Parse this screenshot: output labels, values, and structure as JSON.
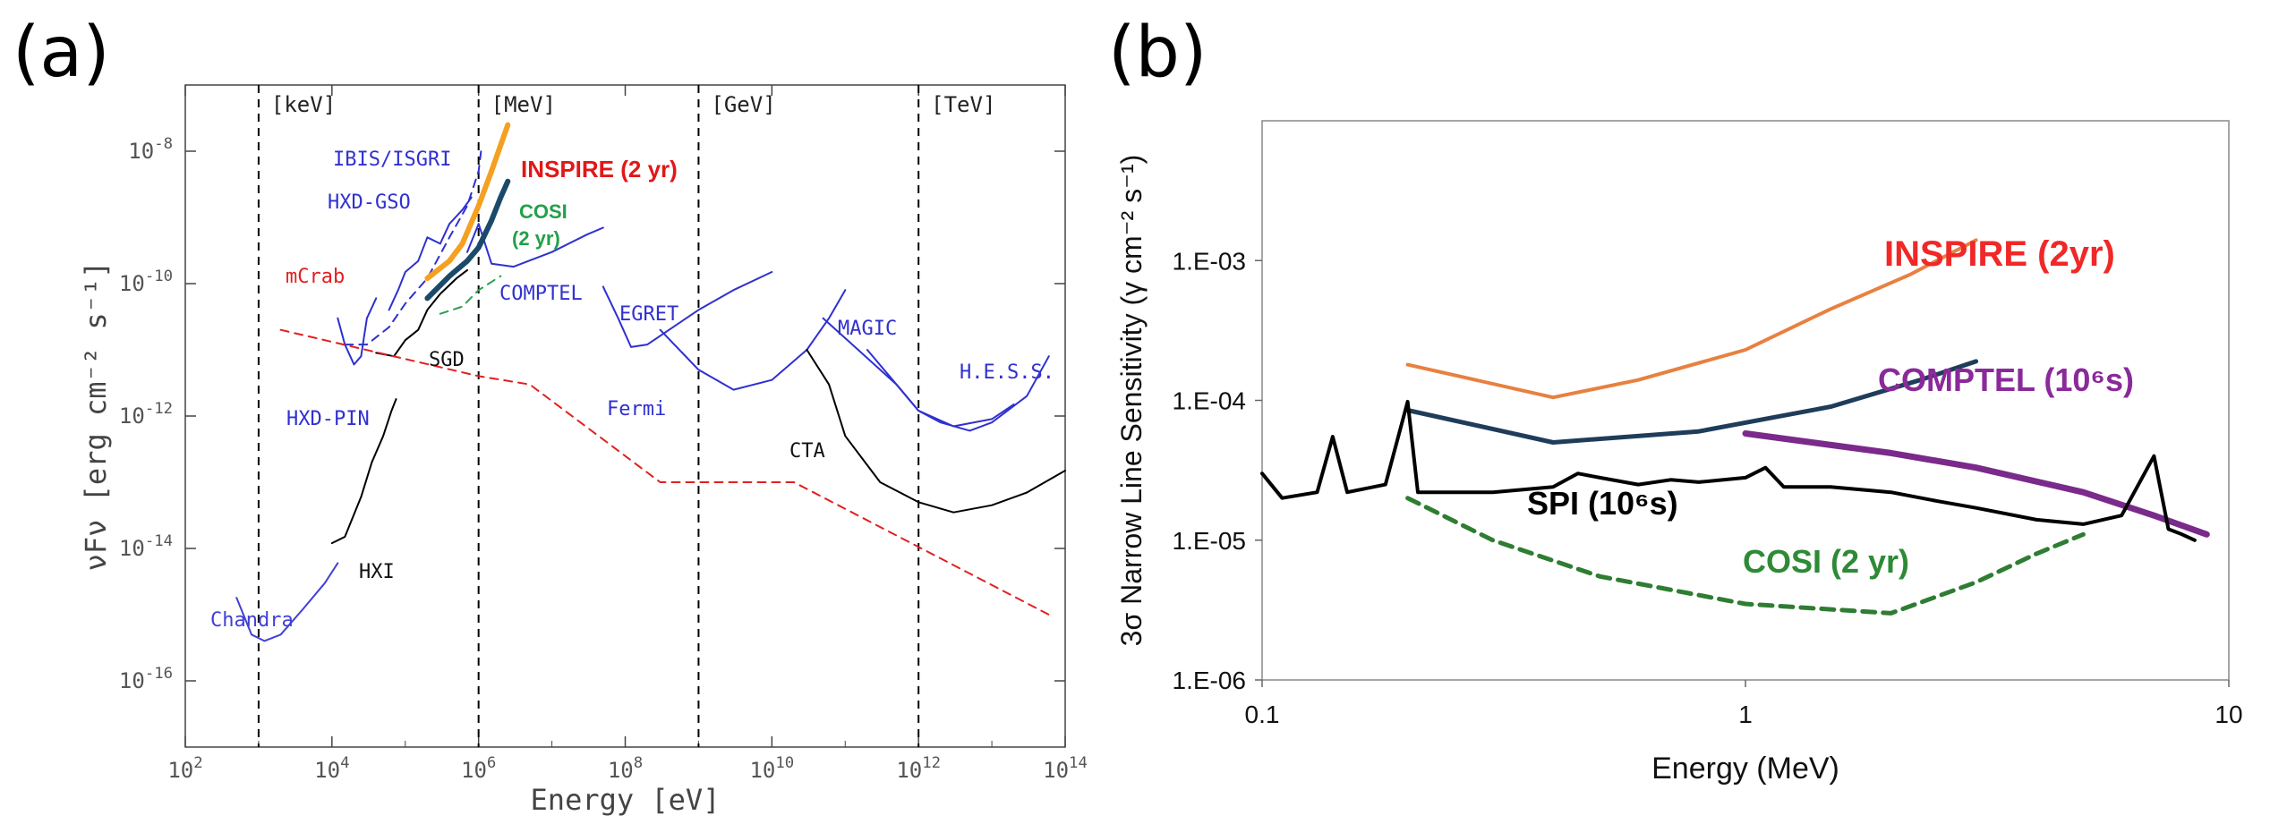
{
  "figure": {
    "panel_a_label": "(a)",
    "panel_b_label": "(b)"
  },
  "chart_data": [
    {
      "panel": "(a)",
      "type": "line",
      "xlabel": "Energy [eV]",
      "ylabel": "νFν [erg cm⁻² s⁻¹]",
      "xscale": "log",
      "yscale": "log",
      "xlim": [
        100,
        100000000000000
      ],
      "ylim": [
        1e-17,
        1e-07
      ],
      "x_ticks": [
        100,
        10000,
        1000000,
        100000000,
        10000000000,
        1000000000000,
        100000000000000
      ],
      "x_tick_labels": [
        "10^2",
        "10^4",
        "10^6",
        "10^8",
        "10^10",
        "10^12",
        "10^14"
      ],
      "y_ticks": [
        1e-16,
        1e-14,
        1e-12,
        1e-10,
        1e-08
      ],
      "y_tick_labels": [
        "10^-16",
        "10^-14",
        "10^-12",
        "10^-10",
        "10^-8"
      ],
      "band_lines": [
        {
          "label": "[keV]",
          "x": 1000
        },
        {
          "label": "[MeV]",
          "x": 1000000
        },
        {
          "label": "[GeV]",
          "x": 1000000000
        },
        {
          "label": "[TeV]",
          "x": 1000000000000
        }
      ],
      "series": [
        {
          "name": "Chandra",
          "color": "#4040d8",
          "style": "solid",
          "points": [
            [
              500,
              1.8e-15
            ],
            [
              800,
              5e-16
            ],
            [
              1200,
              4e-16
            ],
            [
              2000,
              5e-16
            ],
            [
              4000,
              1.2e-15
            ],
            [
              8000,
              3e-15
            ],
            [
              12000,
              6e-15
            ]
          ]
        },
        {
          "name": "HXI",
          "color": "#000000",
          "style": "solid",
          "points": [
            [
              10000,
              1.2e-14
            ],
            [
              15000,
              1.5e-14
            ],
            [
              25000,
              6e-14
            ],
            [
              35000,
              2e-13
            ],
            [
              50000,
              5e-13
            ],
            [
              65000,
              1.2e-12
            ],
            [
              75000,
              1.8e-12
            ]
          ]
        },
        {
          "name": "HXD-PIN",
          "color": "#3030d0",
          "style": "solid",
          "points": [
            [
              12000,
              3e-11
            ],
            [
              15000,
              1.2e-11
            ],
            [
              20000,
              6e-12
            ],
            [
              25000,
              8e-12
            ],
            [
              30000,
              3e-11
            ],
            [
              40000,
              6e-11
            ]
          ]
        },
        {
          "name": "SGD",
          "color": "#000000",
          "style": "solid",
          "points": [
            [
              40000,
              9e-12
            ],
            [
              70000,
              8e-12
            ],
            [
              100000,
              1.4e-11
            ],
            [
              150000,
              2e-11
            ],
            [
              200000,
              4e-11
            ],
            [
              300000,
              7e-11
            ],
            [
              500000,
              1.2e-10
            ],
            [
              700000,
              1.6e-10
            ]
          ]
        },
        {
          "name": "HXD-GSO",
          "color": "#3030d0",
          "style": "solid",
          "points": [
            [
              60000,
              4e-11
            ],
            [
              80000,
              8e-11
            ],
            [
              100000,
              1.5e-10
            ],
            [
              150000,
              2.2e-10
            ],
            [
              200000,
              5e-10
            ],
            [
              300000,
              4e-10
            ],
            [
              400000,
              8e-10
            ],
            [
              600000,
              1.3e-09
            ],
            [
              800000,
              2e-09
            ]
          ]
        },
        {
          "name": "IBIS/ISGRI",
          "color": "#3030d0",
          "style": "dashed",
          "points": [
            [
              15000,
              1.2e-11
            ],
            [
              30000,
              1.2e-11
            ],
            [
              60000,
              2.2e-11
            ],
            [
              100000,
              5e-11
            ],
            [
              200000,
              1.2e-10
            ],
            [
              400000,
              5e-10
            ],
            [
              700000,
              1.5e-09
            ],
            [
              1000000,
              5e-09
            ],
            [
              1100000,
              1.2e-08
            ]
          ]
        },
        {
          "name": "COMPTEL",
          "color": "#3030d0",
          "style": "solid",
          "points": [
            [
              700000,
              3e-10
            ],
            [
              1000000,
              8e-10
            ],
            [
              1500000,
              2e-10
            ],
            [
              3000000,
              1.8e-10
            ],
            [
              10000000,
              3e-10
            ],
            [
              30000000,
              5.5e-10
            ],
            [
              50000000,
              7e-10
            ]
          ]
        },
        {
          "name": "EGRET",
          "color": "#3030d0",
          "style": "solid",
          "points": [
            [
              50000000,
              9e-11
            ],
            [
              80000000,
              3e-11
            ],
            [
              120000000,
              1.1e-11
            ],
            [
              200000000,
              1.2e-11
            ],
            [
              1000000000,
              4e-11
            ],
            [
              3000000000,
              8e-11
            ],
            [
              10000000000,
              1.5e-10
            ]
          ]
        },
        {
          "name": "Fermi",
          "color": "#3030d0",
          "style": "solid",
          "points": [
            [
              300000000,
              2e-11
            ],
            [
              1000000000,
              5e-12
            ],
            [
              3000000000,
              2.5e-12
            ],
            [
              10000000000,
              3.5e-12
            ],
            [
              30000000000,
              1e-11
            ],
            [
              60000000000,
              3e-11
            ],
            [
              100000000000,
              8e-11
            ]
          ]
        },
        {
          "name": "MAGIC",
          "color": "#3030d0",
          "style": "solid",
          "points": [
            [
              50000000000,
              3e-11
            ],
            [
              150000000000,
              1e-11
            ],
            [
              500000000000,
              3e-12
            ],
            [
              1000000000000,
              1.2e-12
            ],
            [
              3000000000000,
              7e-13
            ],
            [
              10000000000000,
              9e-13
            ],
            [
              20000000000000,
              1.5e-12
            ]
          ]
        },
        {
          "name": "H.E.S.S.",
          "color": "#3030d0",
          "style": "solid",
          "points": [
            [
              200000000000,
              1e-11
            ],
            [
              500000000000,
              3e-12
            ],
            [
              1000000000000,
              1.2e-12
            ],
            [
              2000000000000,
              8e-13
            ],
            [
              5000000000000,
              6e-13
            ],
            [
              10000000000000,
              8e-13
            ],
            [
              30000000000000,
              2e-12
            ],
            [
              60000000000000,
              8e-12
            ]
          ]
        },
        {
          "name": "CTA",
          "color": "#000000",
          "style": "solid",
          "points": [
            [
              30000000000,
              1e-11
            ],
            [
              60000000000,
              3e-12
            ],
            [
              100000000000,
              5e-13
            ],
            [
              300000000000,
              1e-13
            ],
            [
              1000000000000,
              5e-14
            ],
            [
              3000000000000,
              3.5e-14
            ],
            [
              10000000000000,
              4.5e-14
            ],
            [
              30000000000000,
              7e-14
            ],
            [
              100000000000000,
              1.5e-13
            ]
          ]
        },
        {
          "name": "mCrab",
          "color": "#e02020",
          "style": "dashed",
          "points": [
            [
              2000,
              2e-11
            ],
            [
              1000000,
              4e-12
            ],
            [
              5000000,
              3e-12
            ],
            [
              300000000,
              1e-13
            ],
            [
              1000000000,
              1e-13
            ],
            [
              20000000000,
              1e-13
            ],
            [
              60000000000000,
              1e-15
            ]
          ]
        },
        {
          "name": "INSPIRE (2 yr)",
          "color": "#f5a020",
          "style": "solid",
          "width": "bold",
          "points": [
            [
              200000,
              1.2e-10
            ],
            [
              400000,
              2.2e-10
            ],
            [
              600000,
              4e-10
            ],
            [
              1000000,
              1.5e-09
            ],
            [
              1500000,
              5e-09
            ],
            [
              2500000,
              2.5e-08
            ]
          ]
        },
        {
          "name": "COSI (2 yr)",
          "color": "#2aa050",
          "style": "dashed",
          "points": [
            [
              300000,
              3.5e-11
            ],
            [
              600000,
              4.5e-11
            ],
            [
              1000000,
              8e-11
            ],
            [
              2000000,
              1.3e-10
            ]
          ]
        },
        {
          "name": "",
          "color": "#1a4a6a",
          "style": "solid",
          "width": "bold",
          "points": [
            [
              200000,
              6e-11
            ],
            [
              400000,
              1.3e-10
            ],
            [
              700000,
              2.2e-10
            ],
            [
              1000000,
              3.5e-10
            ],
            [
              1500000,
              9e-10
            ],
            [
              2000000,
              2e-09
            ],
            [
              2500000,
              3.5e-09
            ]
          ]
        }
      ]
    },
    {
      "panel": "(b)",
      "type": "line",
      "xlabel": "Energy (MeV)",
      "ylabel": "3σ  Narrow Line Sensitivity (γ cm⁻² s⁻¹)",
      "xscale": "log",
      "yscale": "log",
      "xlim": [
        0.1,
        10
      ],
      "ylim": [
        1e-06,
        0.01
      ],
      "x_ticks": [
        0.1,
        1,
        10
      ],
      "x_tick_labels": [
        "0.1",
        "1",
        "10"
      ],
      "y_ticks": [
        1e-06,
        1e-05,
        0.0001,
        0.001
      ],
      "y_tick_labels": [
        "1.E-06",
        "1.E-05",
        "1.E-04",
        "1.E-03"
      ],
      "series": [
        {
          "name": "INSPIRE (2yr)",
          "color": "#e88040",
          "style": "solid",
          "points": [
            [
              0.2,
              0.00018
            ],
            [
              0.4,
              0.000105
            ],
            [
              0.6,
              0.00014
            ],
            [
              1,
              0.00023
            ],
            [
              1.5,
              0.00045
            ],
            [
              2.2,
              0.0008
            ],
            [
              3,
              0.0014
            ]
          ]
        },
        {
          "name": "",
          "color": "#1f3c5a",
          "style": "solid",
          "points": [
            [
              0.2,
              8.5e-05
            ],
            [
              0.4,
              5e-05
            ],
            [
              0.8,
              6e-05
            ],
            [
              1.5,
              9e-05
            ],
            [
              2.3,
              0.00014
            ],
            [
              3,
              0.00019
            ]
          ]
        },
        {
          "name": "COMPTEL (10⁶s)",
          "color": "#7a2a8a",
          "style": "solid",
          "points": [
            [
              1,
              5.8e-05
            ],
            [
              2,
              4.2e-05
            ],
            [
              3,
              3.3e-05
            ],
            [
              5,
              2.2e-05
            ],
            [
              7,
              1.5e-05
            ],
            [
              9,
              1.1e-05
            ]
          ]
        },
        {
          "name": "SPI (10⁶s)",
          "color": "#000000",
          "style": "solid",
          "points": [
            [
              0.1,
              3e-05
            ],
            [
              0.11,
              2e-05
            ],
            [
              0.13,
              2.2e-05
            ],
            [
              0.14,
              5.5e-05
            ],
            [
              0.15,
              2.2e-05
            ],
            [
              0.18,
              2.5e-05
            ],
            [
              0.2,
              9.8e-05
            ],
            [
              0.21,
              2.2e-05
            ],
            [
              0.3,
              2.2e-05
            ],
            [
              0.4,
              2.4e-05
            ],
            [
              0.45,
              3e-05
            ],
            [
              0.5,
              2.8e-05
            ],
            [
              0.6,
              2.5e-05
            ],
            [
              0.7,
              2.7e-05
            ],
            [
              0.8,
              2.6e-05
            ],
            [
              1,
              2.8e-05
            ],
            [
              1.1,
              3.3e-05
            ],
            [
              1.2,
              2.4e-05
            ],
            [
              1.5,
              2.4e-05
            ],
            [
              2,
              2.2e-05
            ],
            [
              2.5,
              1.9e-05
            ],
            [
              3,
              1.7e-05
            ],
            [
              4,
              1.4e-05
            ],
            [
              5,
              1.3e-05
            ],
            [
              6,
              1.5e-05
            ],
            [
              7,
              4e-05
            ],
            [
              7.5,
              1.2e-05
            ],
            [
              8,
              1.1e-05
            ],
            [
              8.5,
              1e-05
            ]
          ]
        },
        {
          "name": "COSI (2 yr)",
          "color": "#2e7d32",
          "style": "dashed",
          "points": [
            [
              0.2,
              2e-05
            ],
            [
              0.3,
              1e-05
            ],
            [
              0.5,
              5.5e-06
            ],
            [
              1,
              3.5e-06
            ],
            [
              2,
              3e-06
            ],
            [
              3,
              5e-06
            ],
            [
              4,
              8e-06
            ],
            [
              5,
              1.1e-05
            ]
          ]
        }
      ]
    }
  ]
}
